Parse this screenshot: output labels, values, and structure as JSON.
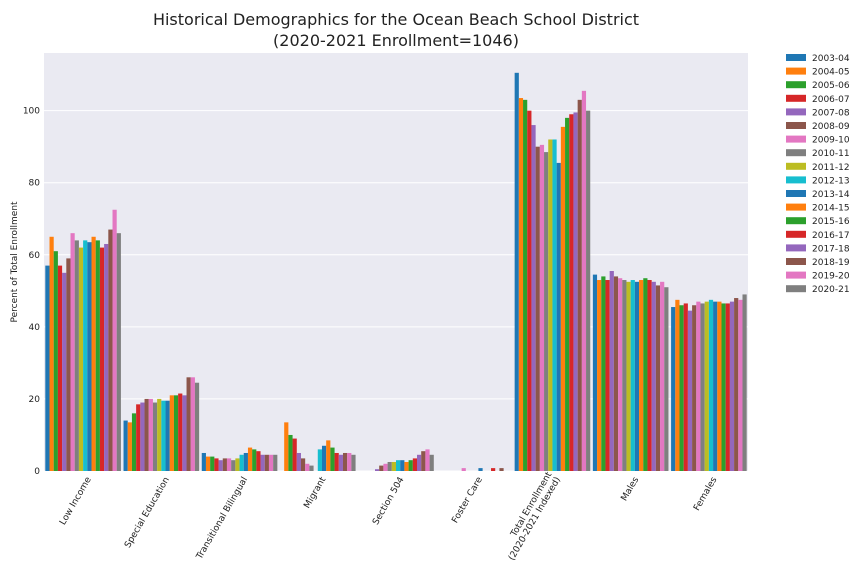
{
  "chart_data": {
    "type": "bar",
    "title": [
      "Historical Demographics for the Ocean Beach School District",
      "(2020-2021 Enrollment=1046)"
    ],
    "ylabel": "Percent of Total Enrollment",
    "xlabel": "",
    "ylim": [
      0,
      116
    ],
    "yticks": [
      0,
      20,
      40,
      60,
      80,
      100
    ],
    "grid": true,
    "legend_position": "outside-right",
    "categories": [
      [
        "Low Income"
      ],
      [
        "Special Education"
      ],
      [
        "Transitional Bilingual"
      ],
      [
        "Migrant"
      ],
      [
        "Section 504"
      ],
      [
        "Foster Care"
      ],
      [
        "Total Enrollment",
        "(2020-2021 Indexed)"
      ],
      [
        "Males"
      ],
      [
        "Females"
      ]
    ],
    "series": [
      {
        "name": "2003-04",
        "color": "#1f77b4",
        "values": [
          57,
          14,
          5,
          0,
          0,
          0,
          110.5,
          54.5,
          45.5
        ]
      },
      {
        "name": "2004-05",
        "color": "#ff7f0e",
        "values": [
          65,
          13.5,
          4,
          13.5,
          0,
          0,
          103.5,
          53,
          47.5
        ]
      },
      {
        "name": "2005-06",
        "color": "#2ca02c",
        "values": [
          61,
          16,
          4,
          10,
          0,
          0,
          103,
          54,
          46
        ]
      },
      {
        "name": "2006-07",
        "color": "#d62728",
        "values": [
          57,
          18.5,
          3.5,
          9,
          0,
          0,
          100,
          53,
          46.5
        ]
      },
      {
        "name": "2007-08",
        "color": "#9467bd",
        "values": [
          55,
          19,
          3,
          5,
          0.5,
          0,
          96,
          55.5,
          44.5
        ]
      },
      {
        "name": "2008-09",
        "color": "#8c564b",
        "values": [
          59,
          20,
          3.5,
          3.5,
          1.5,
          0,
          90,
          54,
          46
        ]
      },
      {
        "name": "2009-10",
        "color": "#e377c2",
        "values": [
          66,
          20,
          3.5,
          2,
          2,
          0.8,
          90.5,
          53.5,
          47
        ]
      },
      {
        "name": "2010-11",
        "color": "#7f7f7f",
        "values": [
          64,
          19,
          3,
          1.5,
          2.5,
          0,
          88.5,
          53,
          46.5
        ]
      },
      {
        "name": "2011-12",
        "color": "#bcbd22",
        "values": [
          62,
          20,
          3.5,
          0,
          2.5,
          0,
          92,
          52.5,
          47
        ]
      },
      {
        "name": "2012-13",
        "color": "#17becf",
        "values": [
          64,
          19.5,
          4.5,
          6,
          3,
          0,
          92,
          53,
          47.5
        ]
      },
      {
        "name": "2013-14",
        "color": "#1f77b4",
        "values": [
          63.5,
          19.5,
          5,
          7,
          3,
          0.8,
          85.5,
          52.5,
          47
        ]
      },
      {
        "name": "2014-15",
        "color": "#ff7f0e",
        "values": [
          65,
          21,
          6.5,
          8.5,
          2.5,
          0,
          95.5,
          53,
          47
        ]
      },
      {
        "name": "2015-16",
        "color": "#2ca02c",
        "values": [
          64,
          21,
          6,
          6.5,
          3,
          0,
          98,
          53.5,
          46.5
        ]
      },
      {
        "name": "2016-17",
        "color": "#d62728",
        "values": [
          62,
          21.5,
          5.5,
          5,
          3.5,
          0.8,
          99,
          53,
          46.5
        ]
      },
      {
        "name": "2017-18",
        "color": "#9467bd",
        "values": [
          63,
          21,
          4.5,
          4.5,
          4.5,
          0,
          99.5,
          52.5,
          47
        ]
      },
      {
        "name": "2018-19",
        "color": "#8c564b",
        "values": [
          67,
          26,
          4.5,
          5,
          5.5,
          0.8,
          103,
          51.5,
          48
        ]
      },
      {
        "name": "2019-20",
        "color": "#e377c2",
        "values": [
          72.5,
          26,
          4.5,
          5,
          6,
          0,
          105.5,
          52.5,
          47.5
        ]
      },
      {
        "name": "2020-21",
        "color": "#7f7f7f",
        "values": [
          66,
          24.5,
          4.5,
          4.5,
          4.5,
          0,
          100,
          51,
          49
        ]
      }
    ]
  }
}
